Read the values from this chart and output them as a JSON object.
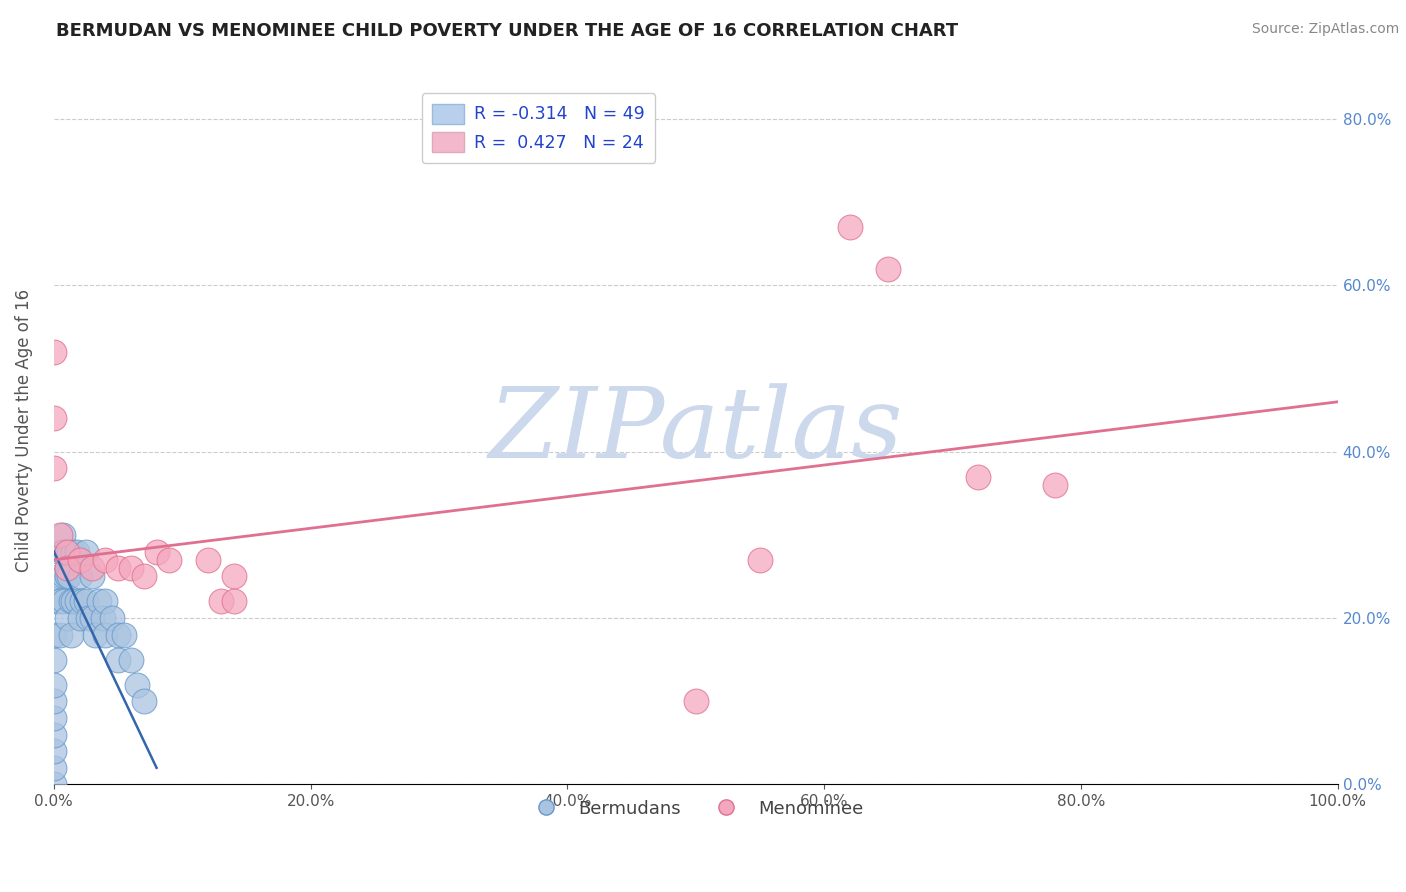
{
  "title": "BERMUDAN VS MENOMINEE CHILD POVERTY UNDER THE AGE OF 16 CORRELATION CHART",
  "source": "Source: ZipAtlas.com",
  "ylabel": "Child Poverty Under the Age of 16",
  "blue_R": -0.314,
  "blue_N": 49,
  "pink_R": 0.427,
  "pink_N": 24,
  "blue_label": "Bermudans",
  "pink_label": "Menominee",
  "blue_color": "#aac4e0",
  "pink_color": "#f4a8be",
  "blue_edge": "#6699cc",
  "pink_edge": "#e07090",
  "blue_line_color": "#3366aa",
  "pink_line_color": "#e07090",
  "legend_blue_fill": "#b8d0ec",
  "legend_pink_fill": "#f4b8cc",
  "watermark_text": "ZIPatlas",
  "xlim": [
    0,
    1.0
  ],
  "ylim": [
    0,
    0.85
  ],
  "yticks": [
    0.0,
    0.2,
    0.4,
    0.6,
    0.8
  ],
  "ytick_labels": [
    "0.0%",
    "20.0%",
    "40.0%",
    "60.0%",
    "80.0%"
  ],
  "xticks": [
    0.0,
    0.2,
    0.4,
    0.6,
    0.8,
    1.0
  ],
  "xtick_labels": [
    "0.0%",
    "20.0%",
    "40.0%",
    "60.0%",
    "80.0%",
    "100.0%"
  ],
  "blue_x": [
    0.0,
    0.0,
    0.0,
    0.0,
    0.0,
    0.0,
    0.0,
    0.0,
    0.0,
    0.0,
    0.005,
    0.005,
    0.005,
    0.005,
    0.007,
    0.007,
    0.008,
    0.008,
    0.01,
    0.01,
    0.01,
    0.012,
    0.012,
    0.013,
    0.013,
    0.015,
    0.015,
    0.018,
    0.018,
    0.02,
    0.02,
    0.022,
    0.025,
    0.025,
    0.027,
    0.03,
    0.03,
    0.032,
    0.035,
    0.038,
    0.04,
    0.04,
    0.045,
    0.05,
    0.05,
    0.055,
    0.06,
    0.065,
    0.07
  ],
  "blue_y": [
    0.0,
    0.02,
    0.04,
    0.06,
    0.08,
    0.1,
    0.12,
    0.15,
    0.18,
    0.22,
    0.28,
    0.25,
    0.22,
    0.18,
    0.3,
    0.28,
    0.25,
    0.22,
    0.28,
    0.25,
    0.2,
    0.28,
    0.25,
    0.22,
    0.18,
    0.28,
    0.22,
    0.28,
    0.22,
    0.25,
    0.2,
    0.22,
    0.28,
    0.22,
    0.2,
    0.25,
    0.2,
    0.18,
    0.22,
    0.2,
    0.22,
    0.18,
    0.2,
    0.18,
    0.15,
    0.18,
    0.15,
    0.12,
    0.1
  ],
  "pink_x": [
    0.0,
    0.0,
    0.0,
    0.005,
    0.01,
    0.01,
    0.02,
    0.03,
    0.04,
    0.05,
    0.06,
    0.07,
    0.08,
    0.09,
    0.12,
    0.13,
    0.14,
    0.14,
    0.5,
    0.55,
    0.62,
    0.65,
    0.72,
    0.78
  ],
  "pink_y": [
    0.52,
    0.44,
    0.38,
    0.3,
    0.28,
    0.26,
    0.27,
    0.26,
    0.27,
    0.26,
    0.26,
    0.25,
    0.28,
    0.27,
    0.27,
    0.22,
    0.25,
    0.22,
    0.1,
    0.27,
    0.67,
    0.62,
    0.37,
    0.36
  ],
  "blue_trend_x": [
    0.0,
    0.08
  ],
  "blue_trend_y": [
    0.28,
    0.02
  ],
  "pink_trend_x": [
    0.0,
    1.0
  ],
  "pink_trend_y": [
    0.27,
    0.46
  ],
  "figsize": [
    14.06,
    8.92
  ],
  "dpi": 100,
  "title_color": "#222222",
  "axis_label_color": "#555555",
  "tick_color": "#555555",
  "right_tick_color": "#5588cc",
  "grid_color": "#cccccc",
  "source_color": "#888888",
  "bg_color": "#ffffff",
  "watermark_color": "#ccd8ec"
}
